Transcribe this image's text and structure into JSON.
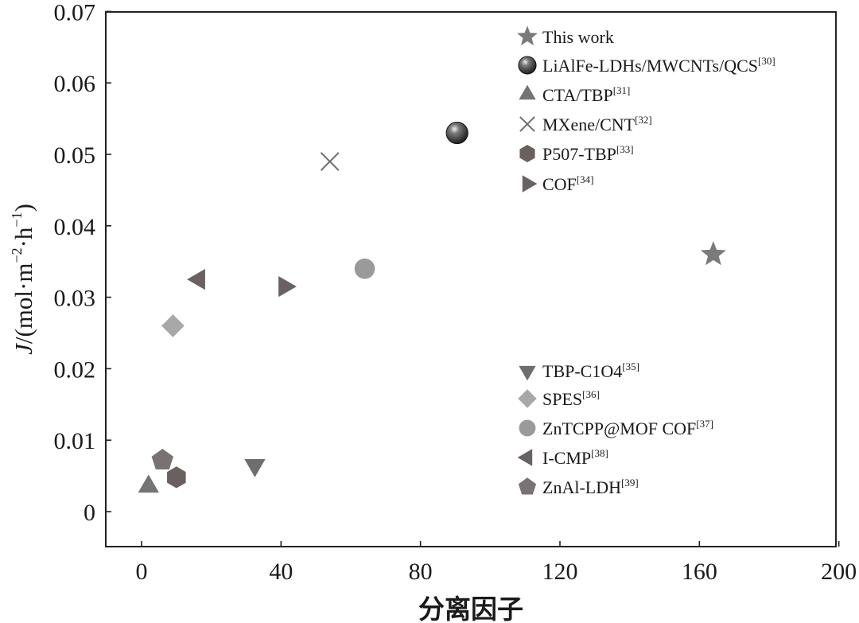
{
  "chart_data": {
    "type": "scatter",
    "title": "",
    "xlabel": "分离因子",
    "ylabel": {
      "J": "J",
      "pre": "/(mol·m",
      "e1": "−2",
      "mid": "·h",
      "e2": "−1",
      "post": ")"
    },
    "xlim": [
      -10,
      200
    ],
    "ylim": [
      -0.005,
      0.07
    ],
    "x_ticks": [
      0,
      40,
      80,
      120,
      160,
      200
    ],
    "x_tick_labels": [
      "0",
      "40",
      "80",
      "120",
      "160",
      "200"
    ],
    "y_ticks": [
      0,
      0.01,
      0.02,
      0.03,
      0.04,
      0.05,
      0.06,
      0.07
    ],
    "y_tick_labels": [
      "0",
      "0.01",
      "0.02",
      "0.03",
      "0.04",
      "0.05",
      "0.06",
      "0.07"
    ],
    "grid": false,
    "legend_placement": "right, split into upper and lower groups",
    "series": [
      {
        "name": "This work",
        "ref": "",
        "marker": "star",
        "color": "#7a7a7a",
        "points": [
          [
            164,
            0.036
          ]
        ]
      },
      {
        "name": "LiAlFe-LDHs/MWCNTs/QCS",
        "ref": "[30]",
        "marker": "sphere",
        "color": "#2e2e2e",
        "points": [
          [
            90.5,
            0.053
          ]
        ]
      },
      {
        "name": "CTA/TBP",
        "ref": "[31]",
        "marker": "triangle-up",
        "color": "#747474",
        "points": [
          [
            2,
            0.0035
          ]
        ]
      },
      {
        "name": "MXene/CNT",
        "ref": "[32]",
        "marker": "x",
        "color": "#6e6e6e",
        "points": [
          [
            54,
            0.049
          ]
        ]
      },
      {
        "name": "P507-TBP",
        "ref": "[33]",
        "marker": "hexagon",
        "color": "#6a6060",
        "points": [
          [
            10,
            0.0048
          ]
        ]
      },
      {
        "name": "COF",
        "ref": "[34]",
        "marker": "triangle-right",
        "color": "#6a6262",
        "points": [
          [
            41,
            0.0315
          ]
        ]
      },
      {
        "name": "TBP-C1O4",
        "ref": "[35]",
        "marker": "triangle-down",
        "color": "#6e6e6e",
        "points": [
          [
            32.5,
            0.0065
          ]
        ]
      },
      {
        "name": "SPES",
        "ref": "[36]",
        "marker": "diamond",
        "color": "#a8a8a8",
        "points": [
          [
            9,
            0.026
          ]
        ]
      },
      {
        "name": "ZnTCPP@MOF COF",
        "ref": "[37]",
        "marker": "circle",
        "color": "#9a9a9a",
        "points": [
          [
            64,
            0.034
          ]
        ]
      },
      {
        "name": "I-CMP",
        "ref": "[38]",
        "marker": "triangle-left",
        "color": "#6a6262",
        "points": [
          [
            16.5,
            0.0325
          ]
        ]
      },
      {
        "name": "ZnAl-LDH",
        "ref": "[39]",
        "marker": "pentagon",
        "color": "#7a7272",
        "points": [
          [
            6,
            0.0072
          ]
        ]
      }
    ]
  }
}
